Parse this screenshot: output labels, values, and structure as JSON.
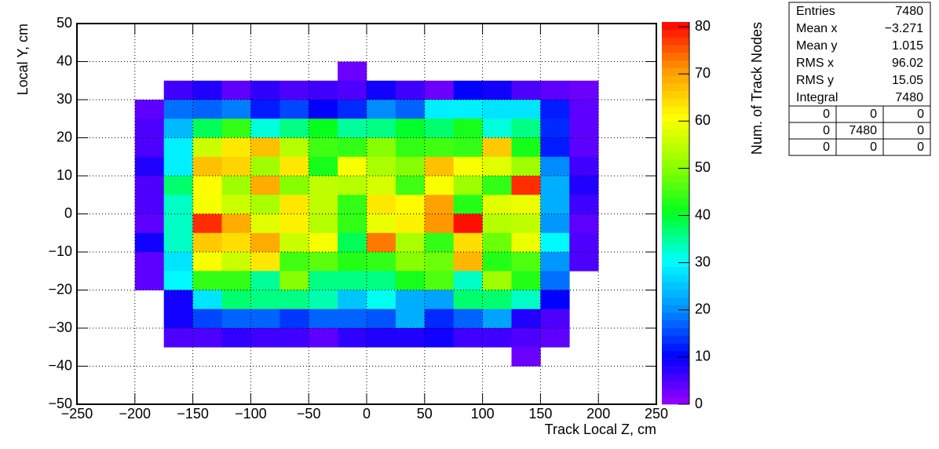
{
  "chart_data": {
    "type": "heatmap",
    "x_label": "Track Local Z, cm",
    "y_label": "Local Y, cm",
    "z_label": "Num. of Track Nodes",
    "xlim": [
      -250,
      250
    ],
    "ylim": [
      -50,
      50
    ],
    "zlim": [
      0,
      81
    ],
    "xticks": [
      {
        "value": -250,
        "label": "−250"
      },
      {
        "value": -200,
        "label": "−200"
      },
      {
        "value": -150,
        "label": "−150"
      },
      {
        "value": -100,
        "label": "−100"
      },
      {
        "value": -50,
        "label": "−50"
      },
      0,
      50,
      100,
      150,
      200,
      250
    ],
    "yticks": [
      {
        "value": -50,
        "label": "−50"
      },
      {
        "value": -40,
        "label": "−40"
      },
      {
        "value": -30,
        "label": "−30"
      },
      {
        "value": -20,
        "label": "−20"
      },
      {
        "value": -10,
        "label": "−10"
      },
      0,
      10,
      20,
      30,
      40,
      50
    ],
    "zticks": [
      0,
      10,
      20,
      30,
      40,
      50,
      60,
      70,
      80
    ],
    "grid": true,
    "palette": [
      "#9a00ff",
      "#0000ff",
      "#0090ff",
      "#00ffff",
      "#00ff20",
      "#90ff00",
      "#ffff00",
      "#ff9900",
      "#ff0000"
    ],
    "xbins": [
      -200,
      -175,
      -150,
      -125,
      -100,
      -75,
      -50,
      -25,
      0,
      25,
      50,
      75,
      100,
      125,
      150,
      175,
      200
    ],
    "ybins": [
      40,
      35,
      30,
      25,
      20,
      15,
      10,
      5,
      0,
      -5,
      -10,
      -15,
      -20,
      -25,
      -30,
      -35,
      -40
    ],
    "z": [
      [
        null,
        null,
        null,
        null,
        null,
        null,
        null,
        3,
        null,
        null,
        null,
        null,
        null,
        null,
        null,
        null
      ],
      [
        null,
        6,
        8,
        4,
        7,
        5,
        6,
        5,
        9,
        6,
        3,
        10,
        9,
        5,
        4,
        3
      ],
      [
        4,
        18,
        17,
        19,
        12,
        15,
        10,
        13,
        20,
        17,
        29,
        29,
        28,
        28,
        12,
        4
      ],
      [
        5,
        24,
        38,
        44,
        32,
        36,
        41,
        35,
        36,
        40,
        37,
        42,
        32,
        36,
        13,
        4
      ],
      [
        5,
        29,
        56,
        63,
        67,
        54,
        45,
        44,
        50,
        44,
        45,
        44,
        66,
        42,
        12,
        4
      ],
      [
        8,
        29,
        67,
        65,
        52,
        63,
        42,
        60,
        53,
        50,
        67,
        60,
        58,
        52,
        20,
        6
      ],
      [
        5,
        37,
        61,
        52,
        69,
        50,
        55,
        54,
        57,
        45,
        60,
        52,
        44,
        78,
        23,
        8
      ],
      [
        5,
        33,
        60,
        56,
        53,
        63,
        55,
        44,
        63,
        61,
        70,
        43,
        58,
        59,
        23,
        6
      ],
      [
        4,
        33,
        78,
        69,
        58,
        62,
        54,
        44,
        59,
        62,
        71,
        80,
        54,
        55,
        21,
        4
      ],
      [
        9,
        33,
        66,
        64,
        69,
        56,
        60,
        38,
        73,
        53,
        44,
        64,
        48,
        59,
        30,
        5
      ],
      [
        4,
        28,
        60,
        56,
        63,
        45,
        47,
        43,
        44,
        50,
        48,
        68,
        43,
        46,
        21,
        5
      ],
      [
        4,
        30,
        44,
        44,
        35,
        50,
        36,
        36,
        36,
        42,
        46,
        33,
        52,
        43,
        18,
        null
      ],
      [
        null,
        9,
        28,
        37,
        36,
        36,
        34,
        25,
        31,
        23,
        22,
        37,
        37,
        33,
        10,
        null
      ],
      [
        null,
        9,
        15,
        17,
        17,
        14,
        17,
        17,
        16,
        23,
        13,
        17,
        22,
        8,
        5,
        null
      ],
      [
        null,
        5,
        5,
        7,
        6,
        6,
        4,
        7,
        8,
        8,
        9,
        6,
        6,
        5,
        4,
        null
      ],
      [
        null,
        null,
        null,
        null,
        null,
        null,
        null,
        null,
        null,
        null,
        null,
        null,
        null,
        3,
        null,
        null
      ]
    ],
    "stats": {
      "rows": [
        [
          "Entries",
          "7480"
        ],
        [
          "Mean x",
          "−3.271"
        ],
        [
          "Mean y",
          "1.015"
        ],
        [
          "RMS x",
          "96.02"
        ],
        [
          "RMS y",
          "15.05"
        ],
        [
          "Integral",
          "7480"
        ]
      ],
      "grid": [
        [
          "0",
          "0",
          "0"
        ],
        [
          "0",
          "7480",
          "0"
        ],
        [
          "0",
          "0",
          "0"
        ]
      ]
    }
  }
}
